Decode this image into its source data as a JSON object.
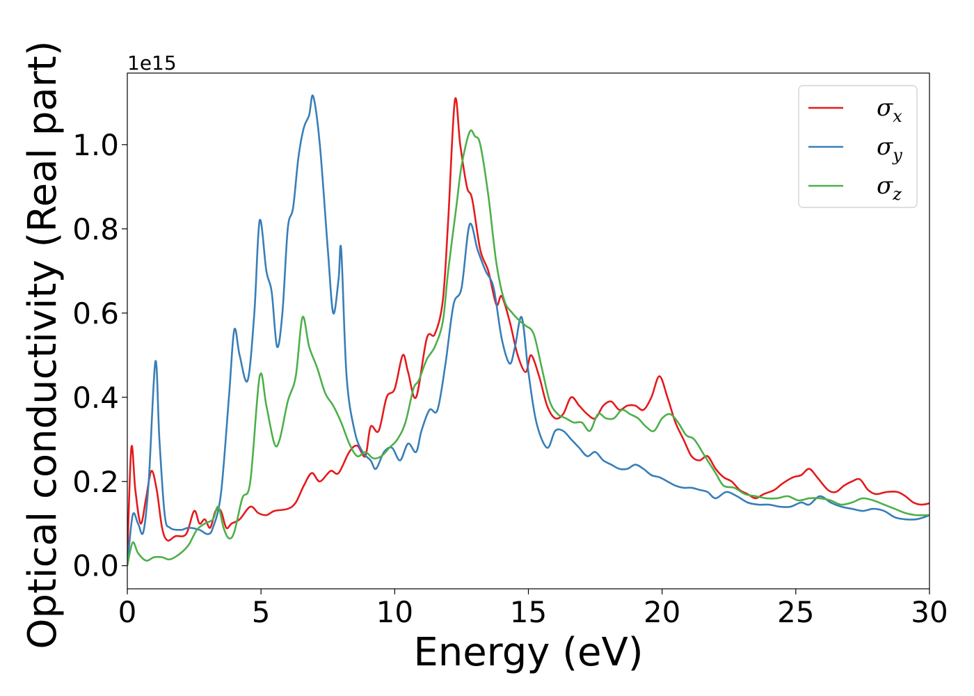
{
  "chart_data": {
    "type": "line",
    "xlabel": "Energy (eV)",
    "ylabel": "Optical conductivity (Real part)",
    "offset_text": "1e15",
    "xlim": [
      0,
      30
    ],
    "ylim": [
      -0.055,
      1.17
    ],
    "x_ticks": [
      0,
      5,
      10,
      15,
      20,
      25,
      30
    ],
    "x_tick_labels": [
      "0",
      "5",
      "10",
      "15",
      "20",
      "25",
      "30"
    ],
    "y_ticks": [
      0.0,
      0.2,
      0.4,
      0.6,
      0.8,
      1.0
    ],
    "y_tick_labels": [
      "0.0",
      "0.2",
      "0.4",
      "0.6",
      "0.8",
      "1.0"
    ],
    "grid": false,
    "legend_position": "top-right",
    "series": [
      {
        "name": "σ",
        "subscript": "x",
        "color": "#e41a1c",
        "points": [
          [
            0,
            0.02
          ],
          [
            0.15,
            0.28
          ],
          [
            0.3,
            0.18
          ],
          [
            0.5,
            0.1
          ],
          [
            0.7,
            0.16
          ],
          [
            0.9,
            0.225
          ],
          [
            1.1,
            0.18
          ],
          [
            1.3,
            0.09
          ],
          [
            1.5,
            0.06
          ],
          [
            1.8,
            0.07
          ],
          [
            2.2,
            0.075
          ],
          [
            2.5,
            0.13
          ],
          [
            2.7,
            0.1
          ],
          [
            2.9,
            0.11
          ],
          [
            3.1,
            0.09
          ],
          [
            3.3,
            0.13
          ],
          [
            3.5,
            0.13
          ],
          [
            3.7,
            0.09
          ],
          [
            3.9,
            0.1
          ],
          [
            4.2,
            0.11
          ],
          [
            4.6,
            0.14
          ],
          [
            4.9,
            0.125
          ],
          [
            5.2,
            0.12
          ],
          [
            5.5,
            0.13
          ],
          [
            6.0,
            0.135
          ],
          [
            6.3,
            0.15
          ],
          [
            6.6,
            0.19
          ],
          [
            6.9,
            0.22
          ],
          [
            7.2,
            0.2
          ],
          [
            7.6,
            0.225
          ],
          [
            7.9,
            0.22
          ],
          [
            8.3,
            0.27
          ],
          [
            8.6,
            0.285
          ],
          [
            8.9,
            0.26
          ],
          [
            9.1,
            0.33
          ],
          [
            9.4,
            0.32
          ],
          [
            9.7,
            0.4
          ],
          [
            10.0,
            0.42
          ],
          [
            10.3,
            0.5
          ],
          [
            10.5,
            0.46
          ],
          [
            10.8,
            0.4
          ],
          [
            11.2,
            0.54
          ],
          [
            11.5,
            0.55
          ],
          [
            11.8,
            0.63
          ],
          [
            12.0,
            0.82
          ],
          [
            12.25,
            1.105
          ],
          [
            12.45,
            1.0
          ],
          [
            12.7,
            0.9
          ],
          [
            12.9,
            0.87
          ],
          [
            13.2,
            0.75
          ],
          [
            13.5,
            0.7
          ],
          [
            13.8,
            0.62
          ],
          [
            14.0,
            0.64
          ],
          [
            14.3,
            0.58
          ],
          [
            14.6,
            0.5
          ],
          [
            14.9,
            0.46
          ],
          [
            15.1,
            0.5
          ],
          [
            15.4,
            0.45
          ],
          [
            15.7,
            0.38
          ],
          [
            16.0,
            0.35
          ],
          [
            16.3,
            0.36
          ],
          [
            16.6,
            0.4
          ],
          [
            16.9,
            0.38
          ],
          [
            17.2,
            0.36
          ],
          [
            17.5,
            0.35
          ],
          [
            17.8,
            0.38
          ],
          [
            18.1,
            0.39
          ],
          [
            18.4,
            0.37
          ],
          [
            18.7,
            0.38
          ],
          [
            19.0,
            0.38
          ],
          [
            19.3,
            0.37
          ],
          [
            19.6,
            0.4
          ],
          [
            19.9,
            0.45
          ],
          [
            20.2,
            0.4
          ],
          [
            20.5,
            0.34
          ],
          [
            20.8,
            0.3
          ],
          [
            21.1,
            0.26
          ],
          [
            21.4,
            0.25
          ],
          [
            21.7,
            0.26
          ],
          [
            22.0,
            0.23
          ],
          [
            22.3,
            0.21
          ],
          [
            22.6,
            0.2
          ],
          [
            22.9,
            0.18
          ],
          [
            23.2,
            0.17
          ],
          [
            23.5,
            0.16
          ],
          [
            23.8,
            0.17
          ],
          [
            24.2,
            0.18
          ],
          [
            24.5,
            0.195
          ],
          [
            24.9,
            0.21
          ],
          [
            25.2,
            0.215
          ],
          [
            25.5,
            0.23
          ],
          [
            25.8,
            0.21
          ],
          [
            26.2,
            0.18
          ],
          [
            26.5,
            0.175
          ],
          [
            26.8,
            0.19
          ],
          [
            27.1,
            0.2
          ],
          [
            27.4,
            0.205
          ],
          [
            27.7,
            0.18
          ],
          [
            28.0,
            0.17
          ],
          [
            28.4,
            0.175
          ],
          [
            28.8,
            0.175
          ],
          [
            29.1,
            0.165
          ],
          [
            29.4,
            0.15
          ],
          [
            29.7,
            0.145
          ],
          [
            30.0,
            0.148
          ]
        ]
      },
      {
        "name": "σ",
        "subscript": "y",
        "color": "#377eb8",
        "points": [
          [
            0,
            0.0
          ],
          [
            0.2,
            0.12
          ],
          [
            0.4,
            0.1
          ],
          [
            0.6,
            0.08
          ],
          [
            0.8,
            0.2
          ],
          [
            1.05,
            0.485
          ],
          [
            1.2,
            0.3
          ],
          [
            1.4,
            0.12
          ],
          [
            1.6,
            0.09
          ],
          [
            2.0,
            0.085
          ],
          [
            2.3,
            0.09
          ],
          [
            2.7,
            0.085
          ],
          [
            3.0,
            0.075
          ],
          [
            3.2,
            0.09
          ],
          [
            3.5,
            0.17
          ],
          [
            3.8,
            0.4
          ],
          [
            4.0,
            0.56
          ],
          [
            4.2,
            0.5
          ],
          [
            4.5,
            0.44
          ],
          [
            4.75,
            0.6
          ],
          [
            4.95,
            0.82
          ],
          [
            5.2,
            0.7
          ],
          [
            5.4,
            0.65
          ],
          [
            5.6,
            0.52
          ],
          [
            5.8,
            0.6
          ],
          [
            6.0,
            0.8
          ],
          [
            6.2,
            0.85
          ],
          [
            6.4,
            0.97
          ],
          [
            6.6,
            1.04
          ],
          [
            6.8,
            1.07
          ],
          [
            6.95,
            1.115
          ],
          [
            7.2,
            1.0
          ],
          [
            7.5,
            0.75
          ],
          [
            7.7,
            0.6
          ],
          [
            7.9,
            0.68
          ],
          [
            8.0,
            0.75
          ],
          [
            8.2,
            0.45
          ],
          [
            8.5,
            0.32
          ],
          [
            8.8,
            0.27
          ],
          [
            9.1,
            0.25
          ],
          [
            9.3,
            0.23
          ],
          [
            9.6,
            0.27
          ],
          [
            9.9,
            0.28
          ],
          [
            10.2,
            0.25
          ],
          [
            10.5,
            0.29
          ],
          [
            10.8,
            0.27
          ],
          [
            11.0,
            0.32
          ],
          [
            11.3,
            0.37
          ],
          [
            11.6,
            0.37
          ],
          [
            11.9,
            0.48
          ],
          [
            12.2,
            0.62
          ],
          [
            12.5,
            0.66
          ],
          [
            12.8,
            0.81
          ],
          [
            13.1,
            0.75
          ],
          [
            13.4,
            0.7
          ],
          [
            13.7,
            0.66
          ],
          [
            14.0,
            0.54
          ],
          [
            14.3,
            0.48
          ],
          [
            14.5,
            0.52
          ],
          [
            14.75,
            0.59
          ],
          [
            15.0,
            0.46
          ],
          [
            15.3,
            0.34
          ],
          [
            15.7,
            0.28
          ],
          [
            16.0,
            0.32
          ],
          [
            16.3,
            0.32
          ],
          [
            16.6,
            0.3
          ],
          [
            16.9,
            0.28
          ],
          [
            17.2,
            0.26
          ],
          [
            17.5,
            0.27
          ],
          [
            17.8,
            0.25
          ],
          [
            18.1,
            0.24
          ],
          [
            18.4,
            0.23
          ],
          [
            18.7,
            0.23
          ],
          [
            19.0,
            0.24
          ],
          [
            19.3,
            0.23
          ],
          [
            19.6,
            0.215
          ],
          [
            19.9,
            0.21
          ],
          [
            20.2,
            0.2
          ],
          [
            20.5,
            0.19
          ],
          [
            20.8,
            0.185
          ],
          [
            21.1,
            0.185
          ],
          [
            21.4,
            0.18
          ],
          [
            21.7,
            0.175
          ],
          [
            22.0,
            0.16
          ],
          [
            22.4,
            0.175
          ],
          [
            22.8,
            0.165
          ],
          [
            23.2,
            0.15
          ],
          [
            23.6,
            0.145
          ],
          [
            24.0,
            0.145
          ],
          [
            24.4,
            0.14
          ],
          [
            24.8,
            0.14
          ],
          [
            25.2,
            0.15
          ],
          [
            25.5,
            0.145
          ],
          [
            25.9,
            0.165
          ],
          [
            26.3,
            0.15
          ],
          [
            26.7,
            0.14
          ],
          [
            27.1,
            0.135
          ],
          [
            27.5,
            0.13
          ],
          [
            27.9,
            0.135
          ],
          [
            28.3,
            0.13
          ],
          [
            28.7,
            0.115
          ],
          [
            29.1,
            0.11
          ],
          [
            29.5,
            0.11
          ],
          [
            29.8,
            0.115
          ],
          [
            30.0,
            0.12
          ]
        ]
      },
      {
        "name": "σ",
        "subscript": "z",
        "color": "#4daf4a",
        "points": [
          [
            0,
            0.0
          ],
          [
            0.2,
            0.055
          ],
          [
            0.4,
            0.03
          ],
          [
            0.7,
            0.012
          ],
          [
            1.0,
            0.02
          ],
          [
            1.3,
            0.02
          ],
          [
            1.6,
            0.015
          ],
          [
            2.0,
            0.03
          ],
          [
            2.3,
            0.05
          ],
          [
            2.6,
            0.085
          ],
          [
            2.9,
            0.1
          ],
          [
            3.2,
            0.11
          ],
          [
            3.4,
            0.14
          ],
          [
            3.6,
            0.09
          ],
          [
            3.8,
            0.065
          ],
          [
            4.0,
            0.08
          ],
          [
            4.3,
            0.16
          ],
          [
            4.6,
            0.2
          ],
          [
            4.95,
            0.45
          ],
          [
            5.2,
            0.38
          ],
          [
            5.5,
            0.29
          ],
          [
            5.7,
            0.3
          ],
          [
            6.0,
            0.39
          ],
          [
            6.3,
            0.45
          ],
          [
            6.55,
            0.59
          ],
          [
            6.8,
            0.52
          ],
          [
            7.1,
            0.47
          ],
          [
            7.4,
            0.41
          ],
          [
            7.7,
            0.38
          ],
          [
            8.0,
            0.34
          ],
          [
            8.3,
            0.29
          ],
          [
            8.6,
            0.26
          ],
          [
            8.9,
            0.27
          ],
          [
            9.2,
            0.255
          ],
          [
            9.5,
            0.26
          ],
          [
            9.8,
            0.28
          ],
          [
            10.1,
            0.3
          ],
          [
            10.4,
            0.34
          ],
          [
            10.7,
            0.42
          ],
          [
            10.9,
            0.44
          ],
          [
            11.2,
            0.49
          ],
          [
            11.5,
            0.52
          ],
          [
            11.8,
            0.58
          ],
          [
            12.0,
            0.7
          ],
          [
            12.3,
            0.85
          ],
          [
            12.5,
            0.95
          ],
          [
            12.8,
            1.03
          ],
          [
            13.0,
            1.02
          ],
          [
            13.2,
            1.0
          ],
          [
            13.5,
            0.88
          ],
          [
            13.8,
            0.72
          ],
          [
            14.1,
            0.63
          ],
          [
            14.4,
            0.6
          ],
          [
            14.7,
            0.58
          ],
          [
            14.9,
            0.57
          ],
          [
            15.2,
            0.55
          ],
          [
            15.5,
            0.47
          ],
          [
            15.8,
            0.39
          ],
          [
            16.1,
            0.36
          ],
          [
            16.4,
            0.35
          ],
          [
            16.7,
            0.34
          ],
          [
            17.0,
            0.34
          ],
          [
            17.3,
            0.32
          ],
          [
            17.6,
            0.36
          ],
          [
            17.9,
            0.35
          ],
          [
            18.2,
            0.35
          ],
          [
            18.5,
            0.37
          ],
          [
            18.8,
            0.36
          ],
          [
            19.1,
            0.35
          ],
          [
            19.4,
            0.33
          ],
          [
            19.7,
            0.32
          ],
          [
            20.0,
            0.35
          ],
          [
            20.3,
            0.36
          ],
          [
            20.6,
            0.34
          ],
          [
            20.9,
            0.31
          ],
          [
            21.2,
            0.3
          ],
          [
            21.6,
            0.26
          ],
          [
            22.0,
            0.22
          ],
          [
            22.3,
            0.19
          ],
          [
            22.7,
            0.185
          ],
          [
            23.1,
            0.17
          ],
          [
            23.5,
            0.165
          ],
          [
            23.9,
            0.16
          ],
          [
            24.3,
            0.16
          ],
          [
            24.7,
            0.165
          ],
          [
            25.1,
            0.155
          ],
          [
            25.5,
            0.16
          ],
          [
            25.9,
            0.16
          ],
          [
            26.3,
            0.155
          ],
          [
            26.7,
            0.145
          ],
          [
            27.1,
            0.15
          ],
          [
            27.5,
            0.16
          ],
          [
            27.9,
            0.155
          ],
          [
            28.3,
            0.145
          ],
          [
            28.7,
            0.135
          ],
          [
            29.1,
            0.125
          ],
          [
            29.5,
            0.12
          ],
          [
            30.0,
            0.12
          ]
        ]
      }
    ]
  }
}
